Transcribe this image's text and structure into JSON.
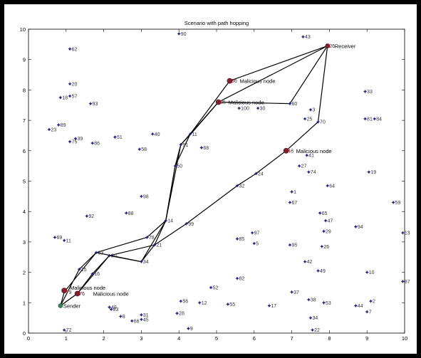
{
  "chart_data": {
    "type": "scatter",
    "title": "Scenario with path hopping",
    "xlabel": "",
    "ylabel": "",
    "xlim": [
      0,
      10
    ],
    "ylim": [
      0,
      10
    ],
    "x_ticks": [
      "0",
      "1",
      "2",
      "3",
      "4",
      "5",
      "6",
      "7",
      "8",
      "9",
      "10"
    ],
    "y_ticks": [
      "0",
      "1",
      "2",
      "3",
      "4",
      "5",
      "6",
      "7",
      "8",
      "9",
      "10"
    ],
    "grid": false,
    "nodes": [
      {
        "id": "90",
        "x": 4.0,
        "y": 9.85
      },
      {
        "id": "43",
        "x": 7.3,
        "y": 9.75
      },
      {
        "id": "26",
        "x": 7.95,
        "y": 9.45
      },
      {
        "id": "62",
        "x": 1.1,
        "y": 9.35
      },
      {
        "id": "20",
        "x": 1.1,
        "y": 8.2
      },
      {
        "id": "36",
        "x": 5.35,
        "y": 8.3
      },
      {
        "id": "33",
        "x": 8.95,
        "y": 7.95
      },
      {
        "id": "18",
        "x": 0.85,
        "y": 7.75
      },
      {
        "id": "57",
        "x": 1.1,
        "y": 7.8
      },
      {
        "id": "93",
        "x": 1.65,
        "y": 7.55
      },
      {
        "id": "35",
        "x": 5.05,
        "y": 7.6
      },
      {
        "id": "60",
        "x": 6.95,
        "y": 7.55
      },
      {
        "id": "100",
        "x": 5.6,
        "y": 7.4
      },
      {
        "id": "30",
        "x": 6.1,
        "y": 7.4
      },
      {
        "id": "3",
        "x": 7.5,
        "y": 7.35
      },
      {
        "id": "25",
        "x": 7.35,
        "y": 7.05
      },
      {
        "id": "70",
        "x": 7.7,
        "y": 6.95
      },
      {
        "id": "81",
        "x": 8.95,
        "y": 7.05
      },
      {
        "id": "84",
        "x": 9.2,
        "y": 7.05
      },
      {
        "id": "89",
        "x": 0.8,
        "y": 6.85
      },
      {
        "id": "23",
        "x": 0.55,
        "y": 6.7
      },
      {
        "id": "40",
        "x": 3.3,
        "y": 6.55
      },
      {
        "id": "51",
        "x": 2.3,
        "y": 6.45
      },
      {
        "id": "11",
        "x": 4.3,
        "y": 6.55
      },
      {
        "id": "39",
        "x": 1.25,
        "y": 6.4
      },
      {
        "id": "75",
        "x": 1.1,
        "y": 6.3
      },
      {
        "id": "86",
        "x": 1.7,
        "y": 6.25
      },
      {
        "id": "91",
        "x": 4.05,
        "y": 6.2
      },
      {
        "id": "58",
        "x": 2.95,
        "y": 6.05
      },
      {
        "id": "68",
        "x": 4.6,
        "y": 6.1
      },
      {
        "id": "46",
        "x": 6.85,
        "y": 6.0
      },
      {
        "id": "41",
        "x": 7.4,
        "y": 5.85
      },
      {
        "id": "50",
        "x": 3.9,
        "y": 5.5
      },
      {
        "id": "27",
        "x": 7.2,
        "y": 5.5
      },
      {
        "id": "74",
        "x": 7.45,
        "y": 5.3
      },
      {
        "id": "19",
        "x": 9.05,
        "y": 5.3
      },
      {
        "id": "24",
        "x": 6.05,
        "y": 5.25
      },
      {
        "id": "64",
        "x": 7.95,
        "y": 4.85
      },
      {
        "id": "32",
        "x": 5.55,
        "y": 4.85
      },
      {
        "id": "98",
        "x": 3.0,
        "y": 4.5
      },
      {
        "id": "1",
        "x": 7.0,
        "y": 4.65
      },
      {
        "id": "67",
        "x": 6.95,
        "y": 4.3
      },
      {
        "id": "59",
        "x": 9.7,
        "y": 4.3
      },
      {
        "id": "88",
        "x": 2.6,
        "y": 3.95
      },
      {
        "id": "65",
        "x": 7.75,
        "y": 3.95
      },
      {
        "id": "92",
        "x": 1.55,
        "y": 3.85
      },
      {
        "id": "14",
        "x": 3.65,
        "y": 3.7
      },
      {
        "id": "47",
        "x": 7.9,
        "y": 3.7
      },
      {
        "id": "99",
        "x": 4.2,
        "y": 3.6
      },
      {
        "id": "94",
        "x": 8.7,
        "y": 3.5
      },
      {
        "id": "29",
        "x": 7.85,
        "y": 3.35
      },
      {
        "id": "13",
        "x": 9.95,
        "y": 3.3
      },
      {
        "id": "97",
        "x": 5.95,
        "y": 3.3
      },
      {
        "id": "69",
        "x": 0.7,
        "y": 3.15
      },
      {
        "id": "11b",
        "label": "11",
        "x": 0.95,
        "y": 3.05
      },
      {
        "id": "85",
        "x": 5.55,
        "y": 3.1
      },
      {
        "id": "78",
        "x": 3.15,
        "y": 3.15
      },
      {
        "id": "5",
        "x": 6.0,
        "y": 2.95
      },
      {
        "id": "21",
        "x": 3.35,
        "y": 2.9
      },
      {
        "id": "95",
        "x": 6.95,
        "y": 2.9
      },
      {
        "id": "26b",
        "label": "26",
        "x": 7.8,
        "y": 2.85
      },
      {
        "id": "63",
        "x": 1.8,
        "y": 2.65
      },
      {
        "id": "80",
        "x": 2.15,
        "y": 2.55
      },
      {
        "id": "34",
        "x": 3.0,
        "y": 2.35
      },
      {
        "id": "42",
        "x": 7.35,
        "y": 2.35
      },
      {
        "id": "15",
        "x": 1.35,
        "y": 2.1
      },
      {
        "id": "49",
        "x": 7.7,
        "y": 2.05
      },
      {
        "id": "10",
        "x": 9.0,
        "y": 2.0
      },
      {
        "id": "16",
        "x": 1.7,
        "y": 1.95
      },
      {
        "id": "82",
        "x": 5.55,
        "y": 1.8
      },
      {
        "id": "87",
        "x": 9.95,
        "y": 1.7
      },
      {
        "id": "52",
        "x": 4.85,
        "y": 1.5
      },
      {
        "id": "37",
        "x": 7.0,
        "y": 1.35
      },
      {
        "id": "79",
        "x": 0.95,
        "y": 1.35
      },
      {
        "id": "76",
        "x": 1.3,
        "y": 1.3
      },
      {
        "id": "38",
        "x": 7.45,
        "y": 1.1
      },
      {
        "id": "56",
        "x": 4.05,
        "y": 1.05
      },
      {
        "id": "12",
        "x": 4.55,
        "y": 1.0
      },
      {
        "id": "53",
        "x": 7.85,
        "y": 1.0
      },
      {
        "id": "2",
        "x": 9.1,
        "y": 1.05
      },
      {
        "id": "55",
        "x": 5.3,
        "y": 0.95
      },
      {
        "id": "17",
        "x": 6.4,
        "y": 0.9
      },
      {
        "id": "44",
        "x": 8.7,
        "y": 0.9
      },
      {
        "id": "48",
        "x": 2.15,
        "y": 0.85
      },
      {
        "id": "83",
        "x": 2.2,
        "y": 0.78
      },
      {
        "id": "7",
        "x": 9.0,
        "y": 0.7
      },
      {
        "id": "28",
        "x": 3.95,
        "y": 0.65
      },
      {
        "id": "8",
        "x": 2.45,
        "y": 0.55
      },
      {
        "id": "31",
        "x": 3.0,
        "y": 0.6
      },
      {
        "id": "34b",
        "label": "34",
        "x": 7.5,
        "y": 0.5
      },
      {
        "id": "66",
        "x": 2.75,
        "y": 0.4
      },
      {
        "id": "45",
        "x": 3.0,
        "y": 0.45
      },
      {
        "id": "9",
        "x": 4.25,
        "y": 0.15
      },
      {
        "id": "72",
        "x": 0.95,
        "y": 0.1
      },
      {
        "id": "22",
        "x": 7.55,
        "y": 0.1
      },
      {
        "id": "S",
        "label": "",
        "x": 0.85,
        "y": 0.9
      }
    ],
    "paths": [
      [
        [
          0.85,
          0.9
        ],
        [
          1.35,
          2.1
        ],
        [
          1.8,
          2.65
        ],
        [
          3.15,
          3.15
        ],
        [
          3.65,
          3.7
        ],
        [
          3.9,
          5.5
        ],
        [
          4.05,
          6.2
        ],
        [
          4.3,
          6.55
        ],
        [
          5.05,
          7.6
        ],
        [
          6.95,
          7.55
        ],
        [
          7.95,
          9.45
        ]
      ],
      [
        [
          0.85,
          0.9
        ],
        [
          1.3,
          1.3
        ],
        [
          1.7,
          1.95
        ],
        [
          2.15,
          2.55
        ],
        [
          3.35,
          2.9
        ],
        [
          3.65,
          3.7
        ],
        [
          3.9,
          5.5
        ],
        [
          4.3,
          6.55
        ],
        [
          5.35,
          8.3
        ],
        [
          7.95,
          9.45
        ]
      ],
      [
        [
          0.85,
          0.9
        ],
        [
          0.95,
          1.35
        ],
        [
          1.8,
          2.65
        ],
        [
          3.0,
          2.35
        ],
        [
          3.65,
          3.7
        ],
        [
          4.05,
          6.2
        ],
        [
          4.35,
          6.6
        ],
        [
          5.05,
          7.6
        ],
        [
          7.95,
          9.45
        ]
      ],
      [
        [
          0.85,
          0.9
        ],
        [
          1.3,
          1.3
        ],
        [
          2.15,
          2.55
        ],
        [
          3.0,
          2.35
        ],
        [
          3.35,
          2.9
        ],
        [
          4.2,
          3.6
        ],
        [
          5.55,
          4.85
        ],
        [
          6.05,
          5.25
        ],
        [
          6.85,
          6.0
        ],
        [
          7.7,
          6.95
        ],
        [
          7.95,
          9.45
        ]
      ]
    ],
    "malicious_nodes": [
      {
        "x": 5.35,
        "y": 8.3,
        "label": "Malicious node"
      },
      {
        "x": 5.05,
        "y": 7.6,
        "label": "Malicious node"
      },
      {
        "x": 6.85,
        "y": 6.0,
        "label": "Malicious node"
      },
      {
        "x": 0.95,
        "y": 1.4,
        "label": "Malicious node"
      },
      {
        "x": 1.3,
        "y": 1.3,
        "label": "Malicious node"
      }
    ],
    "sender": {
      "x": 0.85,
      "y": 0.9,
      "label": "Sender"
    },
    "receiver": {
      "x": 7.95,
      "y": 9.45,
      "label": "Receiver"
    }
  }
}
